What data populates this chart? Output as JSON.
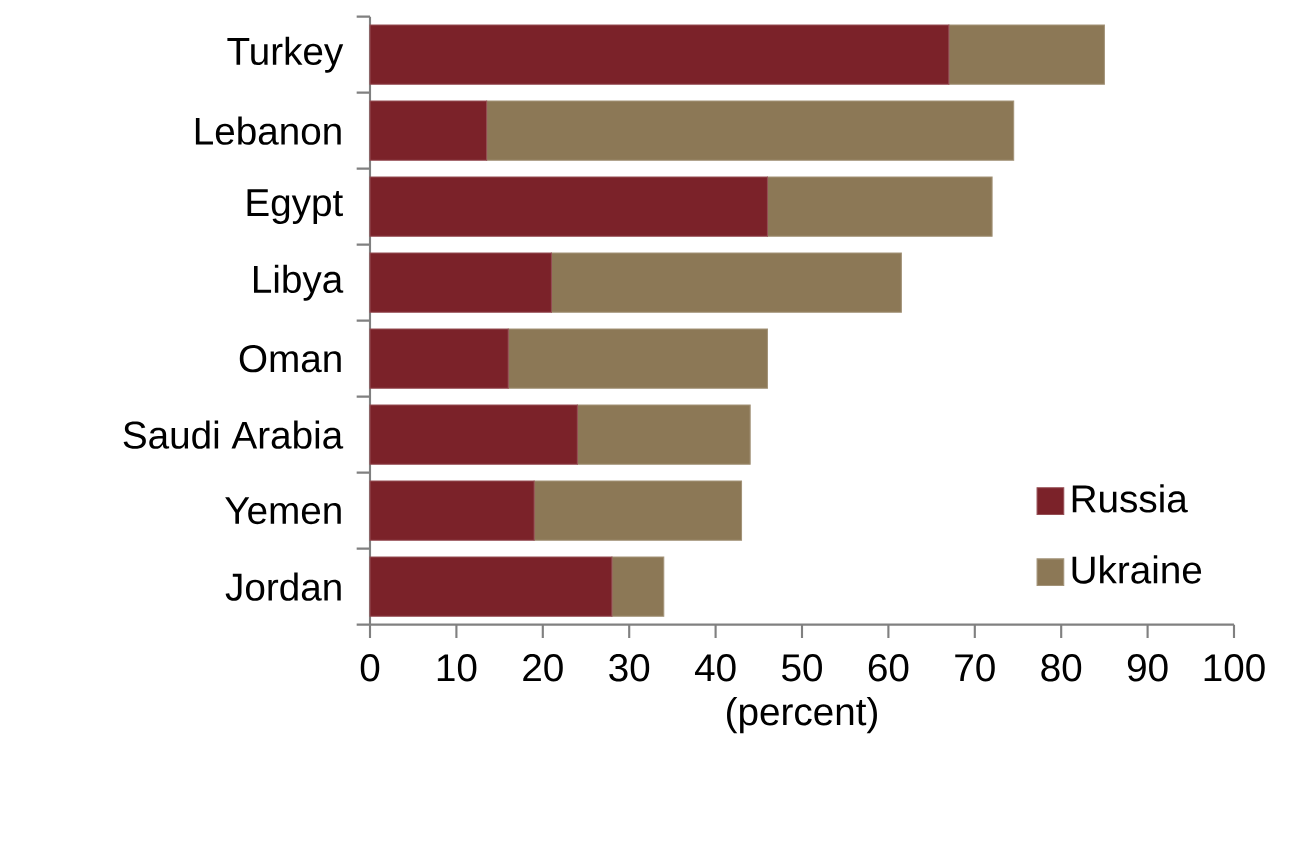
{
  "chart_data": {
    "type": "bar",
    "orientation": "horizontal",
    "stacked": true,
    "categories": [
      "Turkey",
      "Lebanon",
      "Egypt",
      "Libya",
      "Oman",
      "Saudi Arabia",
      "Yemen",
      "Jordan"
    ],
    "series": [
      {
        "name": "Russia",
        "color": "#7b2229",
        "values": [
          67,
          13.5,
          46,
          21,
          16,
          24,
          19,
          28
        ]
      },
      {
        "name": "Ukraine",
        "color": "#8c7856",
        "values": [
          18,
          61,
          26,
          40.5,
          30,
          20,
          24,
          6
        ]
      }
    ],
    "xlabel": "(percent)",
    "xlim": [
      0,
      100
    ],
    "xticks": [
      0,
      10,
      20,
      30,
      40,
      50,
      60,
      70,
      80,
      90,
      100
    ],
    "legend": "bottom right",
    "grid": false
  }
}
